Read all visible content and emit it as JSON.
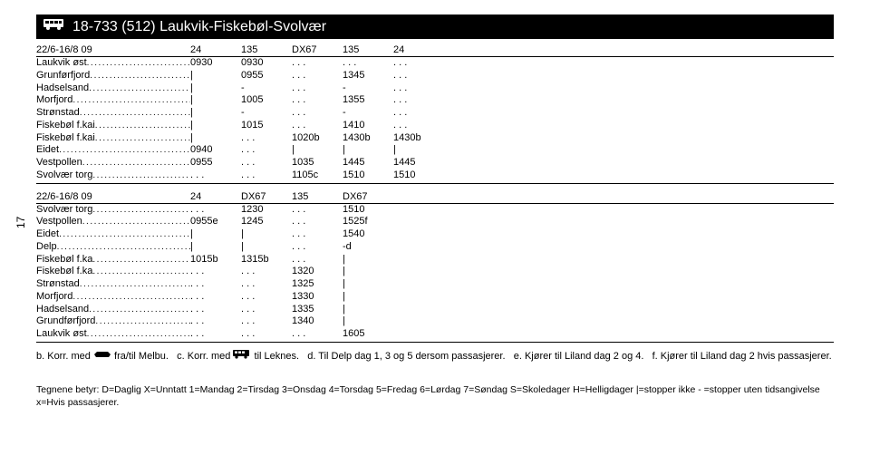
{
  "page_number": "17",
  "title": "18-733 (512) Laukvik-Fiskebøl-Svolvær",
  "colors": {
    "banner_bg": "#000000",
    "banner_fg": "#ffffff",
    "text": "#000000",
    "rule": "#000000"
  },
  "block1": {
    "header": [
      "22/6-16/8 09",
      "24",
      "135",
      "DX67",
      "135",
      "24"
    ],
    "rows": [
      {
        "stop": "Laukvik øst",
        "c": [
          "0930",
          "0930",
          ". . .",
          ". . .",
          ". . ."
        ]
      },
      {
        "stop": "Grunførfjord",
        "c": [
          "|",
          "0955",
          ". . .",
          "1345",
          ". . ."
        ]
      },
      {
        "stop": "Hadselsand",
        "c": [
          "|",
          "-",
          ". . .",
          "-",
          ". . ."
        ]
      },
      {
        "stop": "Morfjord",
        "c": [
          "|",
          "1005",
          ". . .",
          "1355",
          ". . ."
        ]
      },
      {
        "stop": "Strønstad",
        "c": [
          "|",
          "-",
          ". . .",
          "-",
          ". . ."
        ]
      },
      {
        "stop": "Fiskebøl f.kai",
        "c": [
          "|",
          "1015",
          ". . .",
          "1410",
          ". . ."
        ]
      },
      {
        "stop": "Fiskebøl f.kai",
        "c": [
          "|",
          ". . .",
          "1020b",
          "1430b",
          "1430b"
        ]
      },
      {
        "stop": "Eidet",
        "c": [
          "0940",
          ". . .",
          "|",
          "|",
          "|"
        ]
      },
      {
        "stop": "Vestpollen",
        "c": [
          "0955",
          ". . .",
          "1035",
          "1445",
          "1445"
        ]
      },
      {
        "stop": "Svolvær torg",
        "c": [
          ". . .",
          ". . .",
          "1105c",
          "1510",
          "1510"
        ]
      }
    ]
  },
  "block2": {
    "header": [
      "22/6-16/8 09",
      "24",
      "DX67",
      "135",
      "DX67"
    ],
    "rows": [
      {
        "stop": "Svolvær torg",
        "c": [
          ". . .",
          "1230",
          ". . .",
          "1510"
        ]
      },
      {
        "stop": "Vestpollen",
        "c": [
          "0955e",
          "1245",
          ". . .",
          "1525f"
        ]
      },
      {
        "stop": "Eidet",
        "c": [
          "|",
          "|",
          ". . .",
          "1540"
        ]
      },
      {
        "stop": "Delp",
        "c": [
          "|",
          "|",
          ". . .",
          "-d"
        ]
      },
      {
        "stop": "Fiskebøl f.ka",
        "c": [
          "1015b",
          "1315b",
          ". . .",
          "|"
        ]
      },
      {
        "stop": "Fiskebøl f.ka",
        "c": [
          ". . .",
          ". . .",
          "1320",
          "|"
        ]
      },
      {
        "stop": "Strønstad",
        "c": [
          ". . .",
          ". . .",
          "1325",
          "|"
        ]
      },
      {
        "stop": "Morfjord",
        "c": [
          ". . .",
          ". . .",
          "1330",
          "|"
        ]
      },
      {
        "stop": "Hadselsand",
        "c": [
          ". . .",
          ". . .",
          "1335",
          "|"
        ]
      },
      {
        "stop": "Grundførfjord",
        "c": [
          ". . .",
          ". . .",
          "1340",
          "|"
        ]
      },
      {
        "stop": "Laukvik øst",
        "c": [
          ". . .",
          ". . .",
          ". . .",
          "1605"
        ]
      }
    ]
  },
  "notes": {
    "b": "b. Korr. med",
    "b2": " fra/til Melbu.",
    "c": "c. Korr. med",
    "c2": " til Leknes.",
    "d": "d. Til Delp dag 1, 3 og 5 dersom passasjerer.",
    "e": "e. Kjører til Liland dag 2 og 4.",
    "f": "f. Kjører til Liland dag 2 hvis passasjerer."
  },
  "legend": "Tegnene betyr: D=Daglig X=Unntatt 1=Mandag 2=Tirsdag 3=Onsdag 4=Torsdag 5=Fredag 6=Lørdag 7=Søndag S=Skoledager H=Helligdager |=stopper ikke - =stopper uten tidsangivelse x=Hvis passasjerer."
}
